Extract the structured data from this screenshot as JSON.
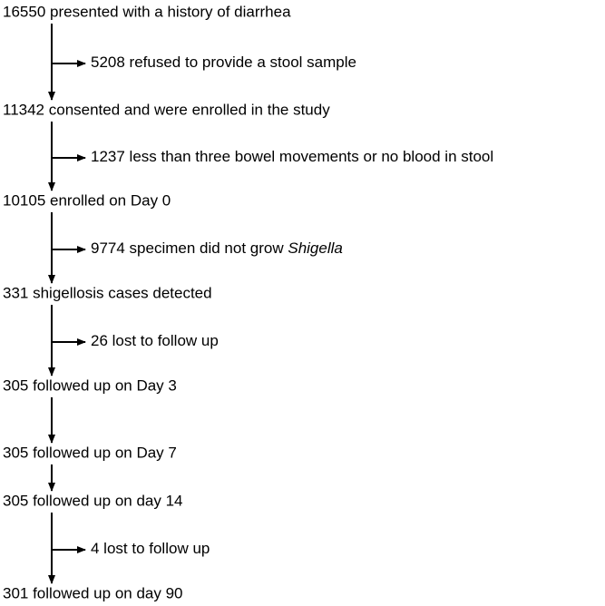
{
  "steps": [
    {
      "text": "16550 presented with a history of diarrhea",
      "excluded": [
        "5208 refused to provide a stool sample"
      ]
    },
    {
      "text": "11342 consented and were enrolled in the study",
      "excluded": [
        "1237 less than three bowel movements or no blood in stool"
      ]
    },
    {
      "text": "10105 enrolled on Day 0",
      "excluded": [
        "9774 specimen did not grow ",
        "Shigella"
      ]
    },
    {
      "text": "331 shigellosis cases detected",
      "excluded": [
        "26 lost to follow up"
      ]
    },
    {
      "text": "305 followed up on Day 3"
    },
    {
      "text": "305 followed up on Day 7"
    },
    {
      "text": "305 followed up on day 14",
      "excluded": [
        "4 lost to follow up"
      ]
    },
    {
      "text": "301 followed up on day 90"
    }
  ]
}
